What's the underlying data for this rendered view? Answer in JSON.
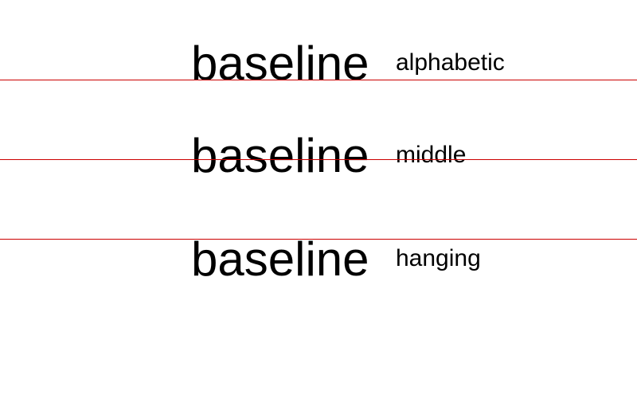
{
  "colors": {
    "background": "#ffffff",
    "guide_line": "#cc0000",
    "text": "#000000"
  },
  "rows": [
    {
      "sample": "baseline",
      "label": "alphabetic"
    },
    {
      "sample": "baseline",
      "label": "middle"
    },
    {
      "sample": "baseline",
      "label": "hanging"
    }
  ]
}
